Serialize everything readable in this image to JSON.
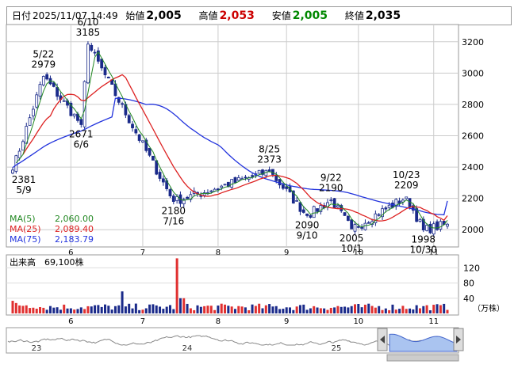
{
  "header": {
    "date_label": "日付",
    "datetime": "2025/11/07 14:49",
    "open_label": "始値",
    "open_value": "2,005",
    "high_label": "高値",
    "high_value": "2,053",
    "low_label": "安値",
    "low_value": "2,005",
    "close_label": "終値",
    "close_value": "2,035",
    "colors": {
      "high": "#cc0000",
      "low": "#008800"
    }
  },
  "chart_data": [
    {
      "type": "candlestick",
      "ylim": [
        1900,
        3300
      ],
      "yticks": [
        2000,
        2200,
        2400,
        2600,
        2800,
        3000,
        3200
      ],
      "month_labels": [
        "6",
        "7",
        "8",
        "9",
        "10",
        "11"
      ],
      "ma_legend": [
        {
          "name": "MA(5)",
          "value": "2,060.00",
          "color": "#228822"
        },
        {
          "name": "MA(25)",
          "value": "2,089.40",
          "color": "#dd2222"
        },
        {
          "name": "MA(75)",
          "value": "2,183.79",
          "color": "#2233dd"
        }
      ],
      "annotations": [
        {
          "date": "5/9",
          "value": "2381"
        },
        {
          "date": "5/22",
          "value": "2979"
        },
        {
          "date": "6/6",
          "value": "2671"
        },
        {
          "date": "6/10",
          "value": "3185"
        },
        {
          "date": "7/16",
          "value": "2180"
        },
        {
          "date": "8/25",
          "value": "2373"
        },
        {
          "date": "9/10",
          "value": "2090"
        },
        {
          "date": "9/22",
          "value": "2190"
        },
        {
          "date": "10/1",
          "value": "2005"
        },
        {
          "date": "10/23",
          "value": "2209"
        },
        {
          "date": "10/30",
          "value": "1998"
        }
      ],
      "key_points": [
        [
          0,
          2381
        ],
        [
          9,
          2979
        ],
        [
          20,
          2671
        ],
        [
          22,
          3185
        ],
        [
          47,
          2180
        ],
        [
          75,
          2373
        ],
        [
          86,
          2090
        ],
        [
          93,
          2190
        ],
        [
          99,
          2005
        ],
        [
          115,
          2209
        ],
        [
          120,
          1998
        ],
        [
          127,
          2035
        ]
      ],
      "ma5_last": 2060.0,
      "ma25_last": 2089.4,
      "ma75_last": 2183.79,
      "last_candle": {
        "open": 2005,
        "high": 2053,
        "low": 2005,
        "close": 2035
      }
    },
    {
      "type": "bar",
      "title": "出来高",
      "value_label": "69,100株",
      "unit": "（万株）",
      "yticks": [
        40,
        80,
        120
      ],
      "ylim": [
        0,
        150
      ],
      "peak_volume": 145,
      "peak_index": 48,
      "typical_volume": 20
    }
  ],
  "navigator": {
    "year_labels": [
      "23",
      "24",
      "25"
    ],
    "range_start_fraction": 0.85
  }
}
